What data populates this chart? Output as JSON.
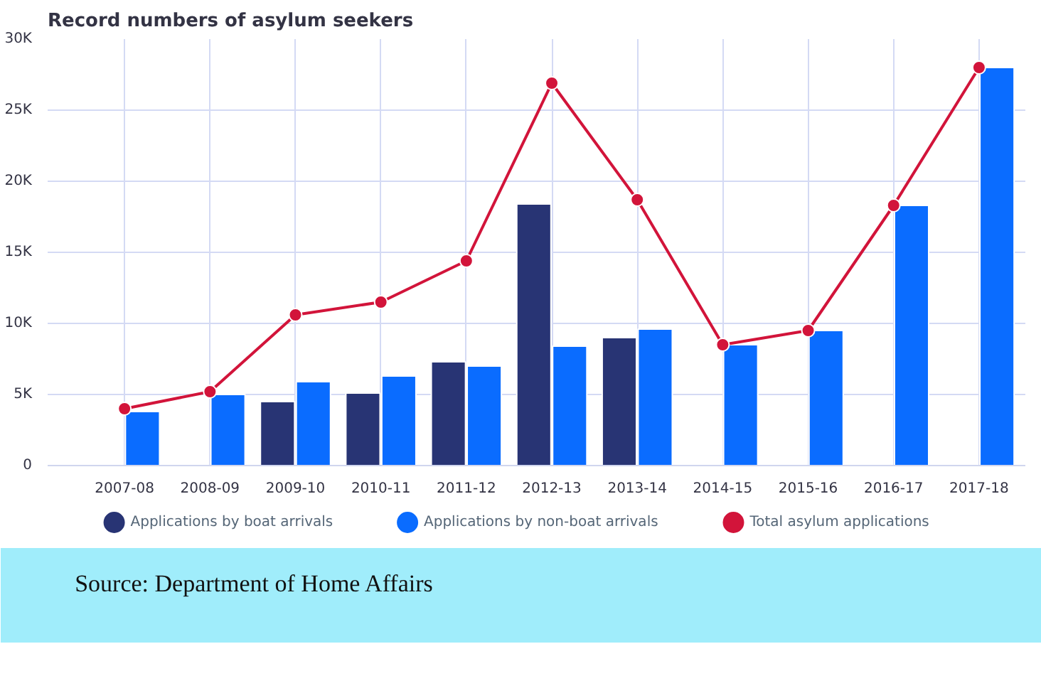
{
  "chart_data": {
    "type": "bar",
    "title": "Record numbers of asylum seekers",
    "categories": [
      "2007-08",
      "2008-09",
      "2009-10",
      "2010-11",
      "2011-12",
      "2012-13",
      "2013-14",
      "2014-15",
      "2015-16",
      "2016-17",
      "2017-18"
    ],
    "series": [
      {
        "name": "Applications by boat arrivals",
        "color": "#283474",
        "values": [
          null,
          null,
          4500,
          5100,
          7300,
          18400,
          9000,
          null,
          null,
          null,
          null
        ]
      },
      {
        "name": "Applications by non-boat arrivals",
        "color": "#0a6cff",
        "values": [
          3800,
          5000,
          5900,
          6300,
          7000,
          8400,
          9600,
          8500,
          9500,
          18300,
          28000
        ]
      },
      {
        "name": "Total asylum applications",
        "type": "line",
        "color": "#d2143a",
        "marker": "circle",
        "values": [
          4000,
          5200,
          10600,
          11500,
          14400,
          26900,
          18700,
          8500,
          9500,
          18300,
          28000
        ]
      }
    ],
    "ylim": [
      0,
      30000
    ],
    "yticks": [
      {
        "value": 0,
        "label": "0"
      },
      {
        "value": 5000,
        "label": "5K"
      },
      {
        "value": 10000,
        "label": "10K"
      },
      {
        "value": 15000,
        "label": "15K"
      },
      {
        "value": 20000,
        "label": "20K"
      },
      {
        "value": 25000,
        "label": "25K"
      },
      {
        "value": 30000,
        "label": "30K"
      }
    ],
    "grid": true,
    "legend": "bottom",
    "annotations": [
      "Source: Department of Home Affairs"
    ]
  }
}
